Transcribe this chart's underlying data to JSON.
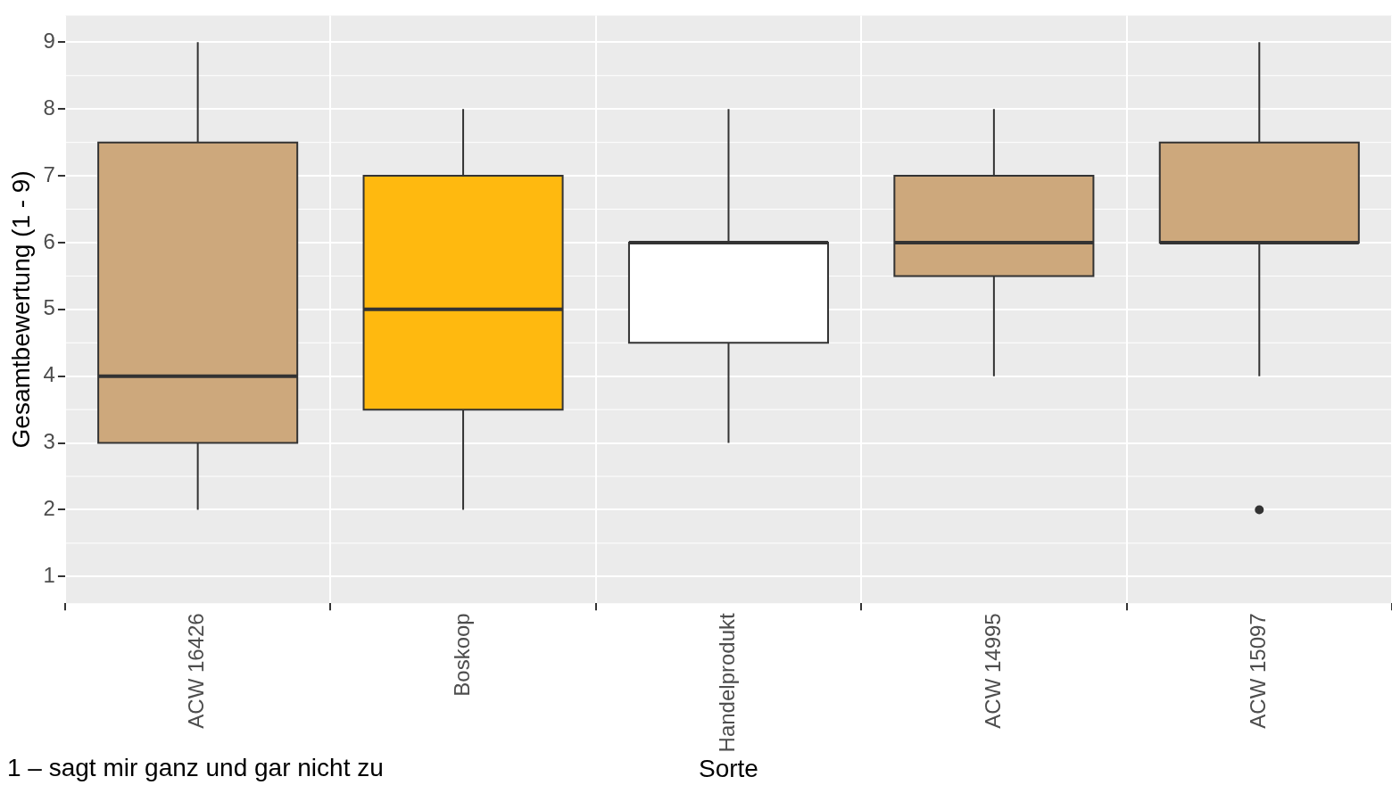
{
  "chart_data": {
    "type": "box",
    "xlabel": "Sorte",
    "ylabel": "Gesamtbewertung (1 - 9)",
    "categories": [
      "ACW 16426",
      "Boskoop",
      "Handelprodukt",
      "ACW 14995",
      "ACW 15097"
    ],
    "colors": [
      "#cda87c",
      "#ffb90f",
      "#ffffff",
      "#cda87c",
      "#cda87c"
    ],
    "boxes": [
      {
        "low": 2,
        "q1": 3,
        "median": 4,
        "q3": 7.5,
        "high": 9
      },
      {
        "low": 2,
        "q1": 3.5,
        "median": 5,
        "q3": 7,
        "high": 8
      },
      {
        "low": 3,
        "q1": 4.5,
        "median": 6,
        "q3": 6,
        "high": 8
      },
      {
        "low": 4,
        "q1": 5.5,
        "median": 6,
        "q3": 7,
        "high": 8
      },
      {
        "low": 4,
        "q1": 6,
        "median": 6,
        "q3": 7.5,
        "high": 9,
        "outliers": [
          2
        ]
      }
    ],
    "ylim": [
      0.6,
      9.4
    ],
    "yticks": [
      1,
      2,
      3,
      4,
      5,
      6,
      7,
      8,
      9
    ],
    "grid": true,
    "annotations": [
      "1 – sagt mir ganz und gar nicht zu"
    ]
  }
}
